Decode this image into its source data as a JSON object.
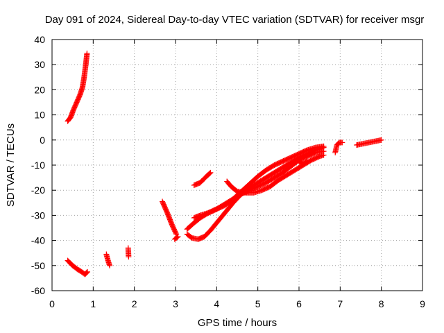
{
  "chart_data": {
    "type": "scatter",
    "title": "Day 091 of 2024, Sidereal Day-to-day VTEC variation (SDTVAR) for receiver msgr",
    "xlabel": "GPS time / hours",
    "ylabel": "SDTVAR / TECUs",
    "xlim": [
      0,
      9
    ],
    "ylim": [
      -60,
      40
    ],
    "xticks": [
      0,
      1,
      2,
      3,
      4,
      5,
      6,
      7,
      8,
      9
    ],
    "yticks": [
      -60,
      -50,
      -40,
      -30,
      -20,
      -10,
      0,
      10,
      20,
      30,
      40
    ],
    "grid": true,
    "marker": "plus",
    "color": "#ff0000",
    "segments": [
      {
        "points": [
          [
            0.38,
            7.5
          ],
          [
            0.45,
            9
          ],
          [
            0.52,
            12
          ],
          [
            0.6,
            15
          ],
          [
            0.68,
            18
          ],
          [
            0.74,
            21
          ],
          [
            0.78,
            25
          ],
          [
            0.82,
            30
          ],
          [
            0.85,
            34.5
          ]
        ]
      },
      {
        "points": [
          [
            0.38,
            -48
          ],
          [
            0.5,
            -50
          ],
          [
            0.62,
            -51.5
          ],
          [
            0.72,
            -52.5
          ],
          [
            0.8,
            -53.5
          ],
          [
            0.86,
            -52.5
          ]
        ]
      },
      {
        "points": [
          [
            1.32,
            -45.5
          ],
          [
            1.36,
            -48
          ],
          [
            1.4,
            -50
          ]
        ]
      },
      {
        "points": [
          [
            1.85,
            -43
          ],
          [
            1.86,
            -46.5
          ]
        ]
      },
      {
        "points": [
          [
            2.68,
            -24.5
          ],
          [
            2.8,
            -29
          ],
          [
            2.92,
            -34
          ],
          [
            3.02,
            -37.5
          ]
        ]
      },
      {
        "points": [
          [
            2.98,
            -39.5
          ],
          [
            3.06,
            -38.5
          ]
        ]
      },
      {
        "points": [
          [
            3.45,
            -18
          ],
          [
            3.6,
            -17
          ],
          [
            3.75,
            -14.5
          ],
          [
            3.85,
            -13
          ]
        ]
      },
      {
        "points": [
          [
            3.28,
            -37.5
          ],
          [
            3.4,
            -39
          ],
          [
            3.55,
            -39.5
          ],
          [
            3.7,
            -38.5
          ],
          [
            3.85,
            -36
          ],
          [
            4.0,
            -33
          ],
          [
            4.2,
            -29
          ],
          [
            4.4,
            -25
          ],
          [
            4.6,
            -21.5
          ],
          [
            4.8,
            -19
          ],
          [
            5.0,
            -17
          ],
          [
            5.2,
            -15
          ],
          [
            5.4,
            -13
          ],
          [
            5.6,
            -11
          ],
          [
            5.8,
            -9
          ],
          [
            6.0,
            -7
          ],
          [
            6.2,
            -5.5
          ],
          [
            6.4,
            -4
          ],
          [
            6.6,
            -3
          ]
        ]
      },
      {
        "points": [
          [
            3.28,
            -35.5
          ],
          [
            3.45,
            -33
          ],
          [
            3.6,
            -31
          ],
          [
            3.8,
            -29
          ],
          [
            4.0,
            -27.5
          ],
          [
            4.2,
            -25.5
          ],
          [
            4.4,
            -23.5
          ],
          [
            4.6,
            -21.5
          ],
          [
            4.8,
            -20
          ],
          [
            5.0,
            -18.5
          ],
          [
            5.2,
            -17
          ],
          [
            5.4,
            -15
          ],
          [
            5.6,
            -13
          ],
          [
            5.8,
            -10.5
          ],
          [
            6.0,
            -8
          ],
          [
            6.2,
            -6.5
          ],
          [
            6.4,
            -5
          ],
          [
            6.6,
            -4.5
          ]
        ]
      },
      {
        "points": [
          [
            3.45,
            -31
          ],
          [
            3.6,
            -30
          ],
          [
            3.8,
            -29
          ],
          [
            4.0,
            -27.5
          ],
          [
            4.2,
            -26
          ],
          [
            4.4,
            -23.5
          ],
          [
            4.6,
            -20.5
          ],
          [
            4.8,
            -17.5
          ],
          [
            5.0,
            -14.5
          ],
          [
            5.2,
            -12
          ],
          [
            5.4,
            -10
          ],
          [
            5.6,
            -8.5
          ],
          [
            5.8,
            -7
          ],
          [
            6.0,
            -5.5
          ],
          [
            6.2,
            -4
          ],
          [
            6.4,
            -3
          ],
          [
            6.6,
            -2.5
          ]
        ]
      },
      {
        "points": [
          [
            4.25,
            -16.5
          ],
          [
            4.35,
            -18.5
          ],
          [
            4.5,
            -20.5
          ],
          [
            4.7,
            -21
          ],
          [
            4.9,
            -21
          ],
          [
            5.1,
            -20
          ],
          [
            5.3,
            -18.5
          ],
          [
            5.5,
            -16
          ],
          [
            5.7,
            -14
          ],
          [
            5.9,
            -12
          ],
          [
            6.1,
            -10
          ],
          [
            6.3,
            -8
          ],
          [
            6.5,
            -6.5
          ],
          [
            6.6,
            -6
          ]
        ]
      },
      {
        "points": [
          [
            6.0,
            -8.5
          ],
          [
            6.1,
            -9.5
          ],
          [
            6.2,
            -8.5
          ]
        ]
      },
      {
        "points": [
          [
            6.88,
            -5
          ],
          [
            6.92,
            -2
          ],
          [
            6.98,
            -1
          ],
          [
            7.05,
            -1
          ]
        ]
      },
      {
        "points": [
          [
            7.4,
            -2
          ],
          [
            7.55,
            -1.5
          ],
          [
            7.7,
            -1
          ],
          [
            7.85,
            -0.5
          ],
          [
            8.0,
            0
          ]
        ]
      }
    ]
  }
}
